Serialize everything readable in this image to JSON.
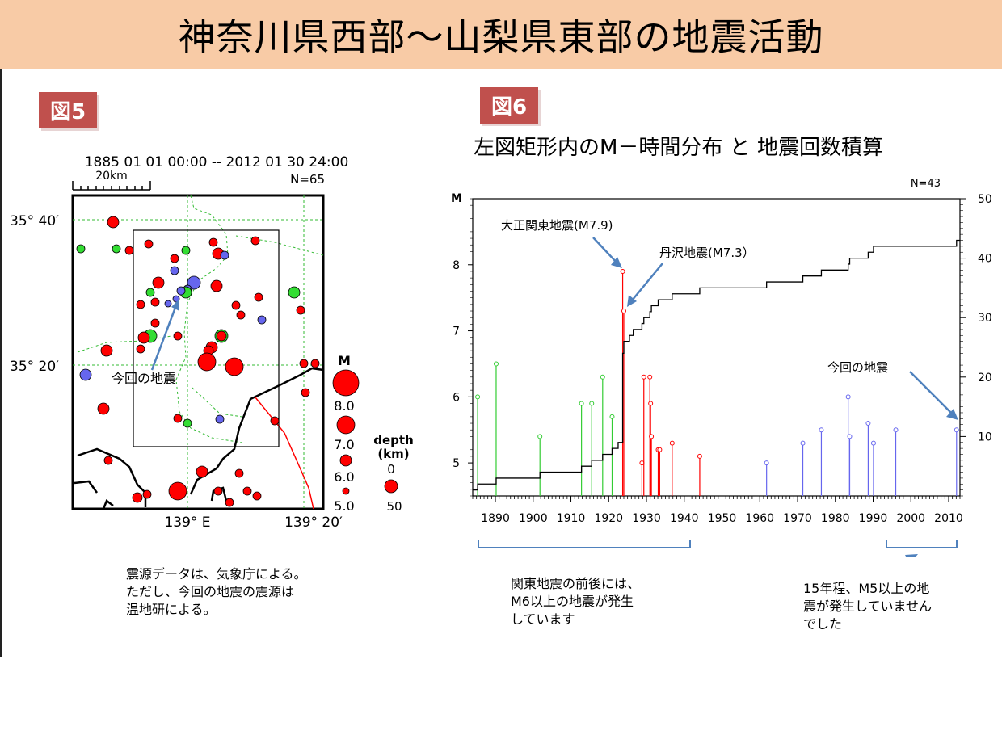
{
  "title": "神奈川県西部〜山梨県東部の地震活動",
  "fig5": {
    "badge": "図5",
    "date_range": "1885 01 01 00:00 -- 2012 01 30 24:00",
    "scale": "20km",
    "count": "N=65",
    "lat_labels": [
      "35° 40′",
      "35° 20′"
    ],
    "lon_labels": [
      "139° E",
      "139° 20′"
    ],
    "annotation": "今回の地震",
    "legend_m_title": "M",
    "legend_m": [
      "8.0",
      "7.0",
      "6.0",
      "5.0"
    ],
    "legend_depth_title": "depth",
    "legend_depth_unit": "(km)",
    "legend_depth": [
      "0",
      "50"
    ],
    "note_lines": [
      "震源データは、気象庁による。",
      "ただし、今回の地震の震源は",
      "温地研による。"
    ],
    "colors": {
      "shallow": "#ff0000",
      "mid": "#33dd33",
      "deep": "#6666ee"
    }
  },
  "fig6": {
    "badge": "図6",
    "subtitle": "左図矩形内のM－時間分布 と 地震回数積算",
    "count": "N=43",
    "callouts": {
      "taisho": "大正関東地震(M7.9)",
      "tanzawa": "丹沢地震(M7.3）",
      "recent": "今回の地震"
    },
    "note_kanto": [
      "関東地震の前後には、",
      "M6以上の地震が発生",
      "しています"
    ],
    "note_recent": [
      "15年程、M5以上の地",
      "震が発生していません",
      "でした"
    ]
  },
  "chart_data": {
    "type": "scatter",
    "xlim": [
      1884,
      2013
    ],
    "x_ticks": [
      1890,
      1900,
      1910,
      1920,
      1930,
      1940,
      1950,
      1960,
      1970,
      1980,
      1990,
      2000,
      2010
    ],
    "y_left_label": "M",
    "ylim_left": [
      4.5,
      9.0
    ],
    "y_left_ticks": [
      5,
      6,
      7,
      8
    ],
    "ylim_right": [
      0,
      50
    ],
    "y_right_ticks": [
      10,
      20,
      30,
      40,
      50
    ],
    "events": [
      {
        "x": 1885.3,
        "m": 6.0,
        "c": "#33cc33"
      },
      {
        "x": 1890.2,
        "m": 6.5,
        "c": "#33cc33"
      },
      {
        "x": 1901.8,
        "m": 5.4,
        "c": "#33cc33"
      },
      {
        "x": 1912.8,
        "m": 5.9,
        "c": "#33cc33"
      },
      {
        "x": 1915.5,
        "m": 5.9,
        "c": "#33cc33"
      },
      {
        "x": 1918.4,
        "m": 6.3,
        "c": "#33cc33"
      },
      {
        "x": 1920.9,
        "m": 5.7,
        "c": "#33cc33"
      },
      {
        "x": 1923.7,
        "m": 7.9,
        "c": "#ff0000"
      },
      {
        "x": 1924.0,
        "m": 7.3,
        "c": "#ff0000"
      },
      {
        "x": 1928.8,
        "m": 5.0,
        "c": "#ff0000"
      },
      {
        "x": 1929.3,
        "m": 6.3,
        "c": "#ff0000"
      },
      {
        "x": 1930.9,
        "m": 6.3,
        "c": "#ff0000"
      },
      {
        "x": 1931.1,
        "m": 5.9,
        "c": "#ff0000"
      },
      {
        "x": 1931.3,
        "m": 5.4,
        "c": "#ff0000"
      },
      {
        "x": 1933.1,
        "m": 5.2,
        "c": "#ff0000"
      },
      {
        "x": 1933.5,
        "m": 5.2,
        "c": "#ff0000"
      },
      {
        "x": 1936.8,
        "m": 5.3,
        "c": "#ff0000"
      },
      {
        "x": 1944.1,
        "m": 5.1,
        "c": "#ff0000"
      },
      {
        "x": 1961.8,
        "m": 5.0,
        "c": "#6666ee"
      },
      {
        "x": 1971.4,
        "m": 5.3,
        "c": "#6666ee"
      },
      {
        "x": 1976.3,
        "m": 5.5,
        "c": "#6666ee"
      },
      {
        "x": 1983.4,
        "m": 6.0,
        "c": "#6666ee"
      },
      {
        "x": 1983.8,
        "m": 5.4,
        "c": "#6666ee"
      },
      {
        "x": 1988.7,
        "m": 5.6,
        "c": "#6666ee"
      },
      {
        "x": 1990.1,
        "m": 5.3,
        "c": "#6666ee"
      },
      {
        "x": 1996.0,
        "m": 5.5,
        "c": "#6666ee"
      },
      {
        "x": 2012.1,
        "m": 5.5,
        "c": "#6666ee"
      }
    ],
    "cumulative": [
      [
        1884,
        1
      ],
      [
        1885.3,
        2
      ],
      [
        1890.2,
        3
      ],
      [
        1901.8,
        4
      ],
      [
        1912.8,
        5
      ],
      [
        1915.5,
        6
      ],
      [
        1918.4,
        7
      ],
      [
        1920.9,
        8
      ],
      [
        1922.5,
        9
      ],
      [
        1923.7,
        24
      ],
      [
        1924.0,
        26
      ],
      [
        1925.5,
        27
      ],
      [
        1926.5,
        28
      ],
      [
        1928.8,
        29
      ],
      [
        1929.3,
        30
      ],
      [
        1930.9,
        31
      ],
      [
        1931.3,
        32
      ],
      [
        1933.1,
        33
      ],
      [
        1936.8,
        34
      ],
      [
        1944.1,
        35
      ],
      [
        1961.8,
        36
      ],
      [
        1971.4,
        37
      ],
      [
        1976.3,
        38
      ],
      [
        1983.4,
        39
      ],
      [
        1983.8,
        40
      ],
      [
        1988.7,
        41
      ],
      [
        1990.1,
        42
      ],
      [
        2012.1,
        43
      ],
      [
        2013,
        43
      ]
    ]
  }
}
